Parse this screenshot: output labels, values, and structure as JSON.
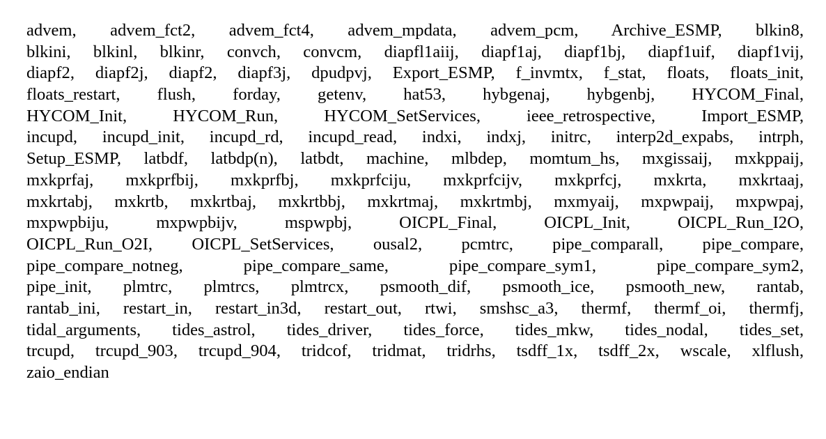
{
  "document": {
    "lines": [
      "advem, advem_fct2, advem_fct4, advem_mpdata, advem_pcm, Archive_ESMP, blkin8,",
      "blkini, blkinl, blkinr, convch, convcm, diapfl1aiij, diapf1aj, diapf1bj, diapf1uif, diapf1vij,",
      "diapf2, diapf2j, diapf2, diapf3j, dpudpvj, Export_ESMP, f_invmtx, f_stat, floats, floats_init,",
      "floats_restart, flush, forday, getenv, hat53, hybgenaj, hybgenbj, HYCOM_Final,",
      "HYCOM_Init, HYCOM_Run, HYCOM_SetServices, ieee_retrospective, Import_ESMP,",
      "incupd, incupd_init, incupd_rd, incupd_read, indxi, indxj, initrc, interp2d_expabs, intrph,",
      "Setup_ESMP, latbdf, latbdp(n), latbdt, machine, mlbdep, momtum_hs, mxgissaij, mxkppaij,",
      "mxkprfaj, mxkprfbij, mxkprfbj, mxkprfciju, mxkprfcijv, mxkprfcj, mxkrta, mxkrtaaj,",
      "mxkrtabj, mxkrtb, mxkrtbaj, mxkrtbbj, mxkrtmaj, mxkrtmbj, mxmyaij, mxpwpaij, mxpwpaj,",
      "mxpwpbiju, mxpwpbijv, mspwpbj, OICPL_Final, OICPL_Init, OICPL_Run_I2O,",
      "OICPL_Run_O2I, OICPL_SetServices, ousal2, pcmtrc, pipe_comparall, pipe_compare,",
      "pipe_compare_notneg, pipe_compare_same, pipe_compare_sym1, pipe_compare_sym2,",
      "pipe_init, plmtrc, plmtrcs, plmtrcx, psmooth_dif, psmooth_ice, psmooth_new, rantab,",
      "rantab_ini, restart_in, restart_in3d, restart_out, rtwi, smshsc_a3, thermf, thermf_oi, thermfj,",
      "tidal_arguments, tides_astrol, tides_driver, tides_force, tides_mkw, tides_nodal, tides_set,",
      "trcupd, trcupd_903, trcupd_904, tridcof, tridmat, tridrhs, tsdff_1x, tsdff_2x, wscale, xlflush,",
      "zaio_endian"
    ]
  }
}
